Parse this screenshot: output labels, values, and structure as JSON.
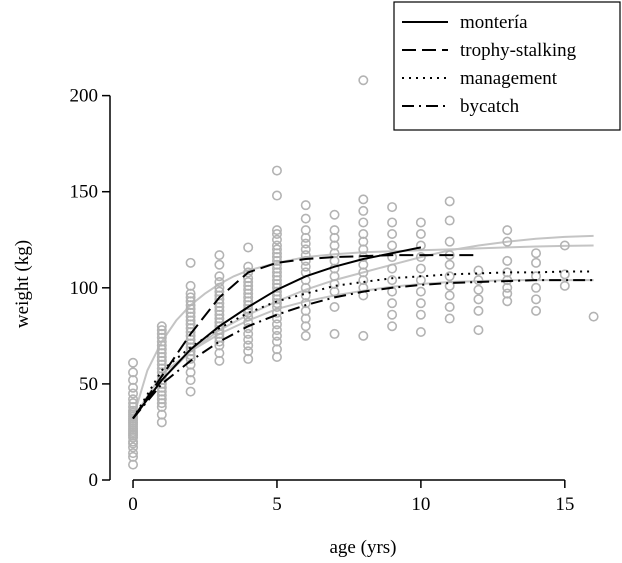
{
  "chart_data": {
    "type": "scatter",
    "title": "",
    "xlabel": "age (yrs)",
    "ylabel": "weight (kg)",
    "xlim": [
      -0.8,
      16.5
    ],
    "ylim": [
      0,
      205
    ],
    "xticks": [
      0,
      5,
      10,
      15
    ],
    "yticks": [
      0,
      50,
      100,
      150,
      200
    ],
    "grid": false,
    "legend_position": "top-right",
    "point_color": "#b3b3b3",
    "band_color": "#c4c4c4",
    "curve_color": "#000000",
    "scatter_groups": [
      {
        "x": 0,
        "y": [
          8,
          12,
          14,
          17,
          19,
          20,
          22,
          23,
          24,
          25,
          26,
          27,
          28,
          29,
          30,
          31,
          32,
          33,
          34,
          35,
          36,
          38,
          40,
          42,
          45,
          48,
          52,
          56,
          61
        ]
      },
      {
        "x": 1,
        "y": [
          30,
          34,
          38,
          40,
          42,
          44,
          46,
          48,
          50,
          52,
          54,
          56,
          58,
          60,
          62,
          64,
          66,
          68,
          70,
          72,
          74,
          76,
          78,
          80
        ]
      },
      {
        "x": 2,
        "y": [
          46,
          52,
          56,
          60,
          63,
          65,
          67,
          69,
          71,
          73,
          75,
          77,
          79,
          81,
          83,
          85,
          87,
          89,
          91,
          93,
          95,
          97,
          101,
          113
        ]
      },
      {
        "x": 3,
        "y": [
          62,
          66,
          70,
          72,
          74,
          76,
          78,
          80,
          82,
          84,
          86,
          88,
          90,
          92,
          94,
          96,
          98,
          100,
          103,
          106,
          112,
          117
        ]
      },
      {
        "x": 4,
        "y": [
          63,
          67,
          70,
          73,
          76,
          79,
          82,
          85,
          87,
          89,
          91,
          93,
          95,
          97,
          99,
          101,
          103,
          105,
          108,
          111,
          121
        ]
      },
      {
        "x": 5,
        "y": [
          64,
          68,
          72,
          75,
          78,
          81,
          84,
          87,
          90,
          92,
          94,
          96,
          98,
          100,
          102,
          104,
          106,
          108,
          110,
          112,
          114,
          116,
          118,
          120,
          122,
          125,
          128,
          130,
          148,
          161
        ]
      },
      {
        "x": 6,
        "y": [
          75,
          80,
          84,
          88,
          92,
          96,
          100,
          104,
          108,
          111,
          114,
          117,
          120,
          123,
          126,
          130,
          136,
          143
        ]
      },
      {
        "x": 7,
        "y": [
          76,
          90,
          98,
          102,
          106,
          110,
          114,
          118,
          122,
          126,
          130,
          138
        ]
      },
      {
        "x": 8,
        "y": [
          75,
          96,
          100,
          104,
          108,
          112,
          116,
          120,
          124,
          128,
          134,
          140,
          146,
          208
        ]
      },
      {
        "x": 9,
        "y": [
          80,
          86,
          92,
          98,
          104,
          110,
          116,
          122,
          128,
          134,
          142
        ]
      },
      {
        "x": 10,
        "y": [
          77,
          86,
          92,
          98,
          104,
          110,
          116,
          122,
          128,
          134
        ]
      },
      {
        "x": 11,
        "y": [
          84,
          90,
          96,
          101,
          106,
          112,
          117,
          124,
          135,
          145
        ]
      },
      {
        "x": 12,
        "y": [
          78,
          88,
          94,
          99,
          104,
          109
        ]
      },
      {
        "x": 13,
        "y": [
          93,
          97,
          100,
          104,
          108,
          114,
          124,
          130
        ]
      },
      {
        "x": 14,
        "y": [
          88,
          94,
          100,
          106,
          113,
          118
        ]
      },
      {
        "x": 15,
        "y": [
          101,
          107,
          122
        ]
      },
      {
        "x": 16,
        "y": [
          85
        ]
      }
    ],
    "bands": [
      {
        "x": [
          0,
          0.5,
          1,
          1.5,
          2,
          2.5,
          3,
          3.5,
          4,
          5,
          6,
          7,
          8,
          9,
          10,
          11,
          12,
          13,
          14,
          15,
          16
        ],
        "y": [
          32,
          57,
          72,
          83,
          91,
          97,
          102,
          106,
          109,
          113,
          116,
          117.5,
          118.5,
          119,
          119.5,
          120,
          120.5,
          121,
          121.5,
          121.8,
          122
        ]
      },
      {
        "x": [
          0,
          1,
          2,
          3,
          4,
          5,
          6,
          7,
          8,
          9,
          10,
          11,
          12,
          13,
          14,
          15,
          16
        ],
        "y": [
          32,
          52,
          67,
          78,
          86,
          93,
          99,
          104,
          108,
          112,
          116,
          119.5,
          122,
          124,
          125.5,
          126.5,
          127
        ]
      },
      {
        "x": [
          0,
          1,
          2,
          3,
          4,
          5,
          6,
          7,
          8,
          9,
          10,
          11,
          12,
          13,
          14,
          15,
          16
        ],
        "y": [
          32,
          55,
          67,
          76,
          83,
          89,
          93,
          96,
          98.5,
          100.5,
          102,
          103,
          103.5,
          104,
          104,
          104,
          104
        ]
      }
    ],
    "series": [
      {
        "name": "montería",
        "dash": "solid",
        "x": [
          0,
          1,
          2,
          3,
          4,
          5,
          6,
          7,
          8,
          9,
          10
        ],
        "y": [
          32,
          52,
          68,
          80,
          90,
          99,
          106,
          111,
          115,
          118,
          121
        ]
      },
      {
        "name": "trophy-stalking",
        "dash": "dashed",
        "x": [
          0,
          1,
          2,
          3,
          4,
          5,
          6,
          7,
          8,
          9,
          10,
          11,
          12
        ],
        "y": [
          32,
          54,
          76,
          95,
          108,
          113,
          115,
          116,
          116.5,
          117,
          117,
          117,
          117
        ]
      },
      {
        "name": "management",
        "dash": "dotted",
        "x": [
          0,
          1,
          2,
          3,
          4,
          5,
          6,
          7,
          8,
          9,
          10,
          11,
          12,
          13,
          14,
          15,
          16
        ],
        "y": [
          32,
          57,
          69,
          79,
          87,
          93,
          97,
          101,
          103,
          105,
          106,
          107,
          107.5,
          108,
          108,
          108.5,
          108.5
        ]
      },
      {
        "name": "bycatch",
        "dash": "dashdot",
        "x": [
          0,
          1,
          2,
          3,
          4,
          5,
          6,
          7,
          8,
          9,
          10,
          11,
          12,
          13,
          14,
          15,
          16
        ],
        "y": [
          32,
          50,
          62,
          72,
          80,
          86,
          91,
          95,
          98,
          100,
          101.5,
          102.5,
          103,
          103.5,
          104,
          104,
          104
        ]
      }
    ]
  }
}
